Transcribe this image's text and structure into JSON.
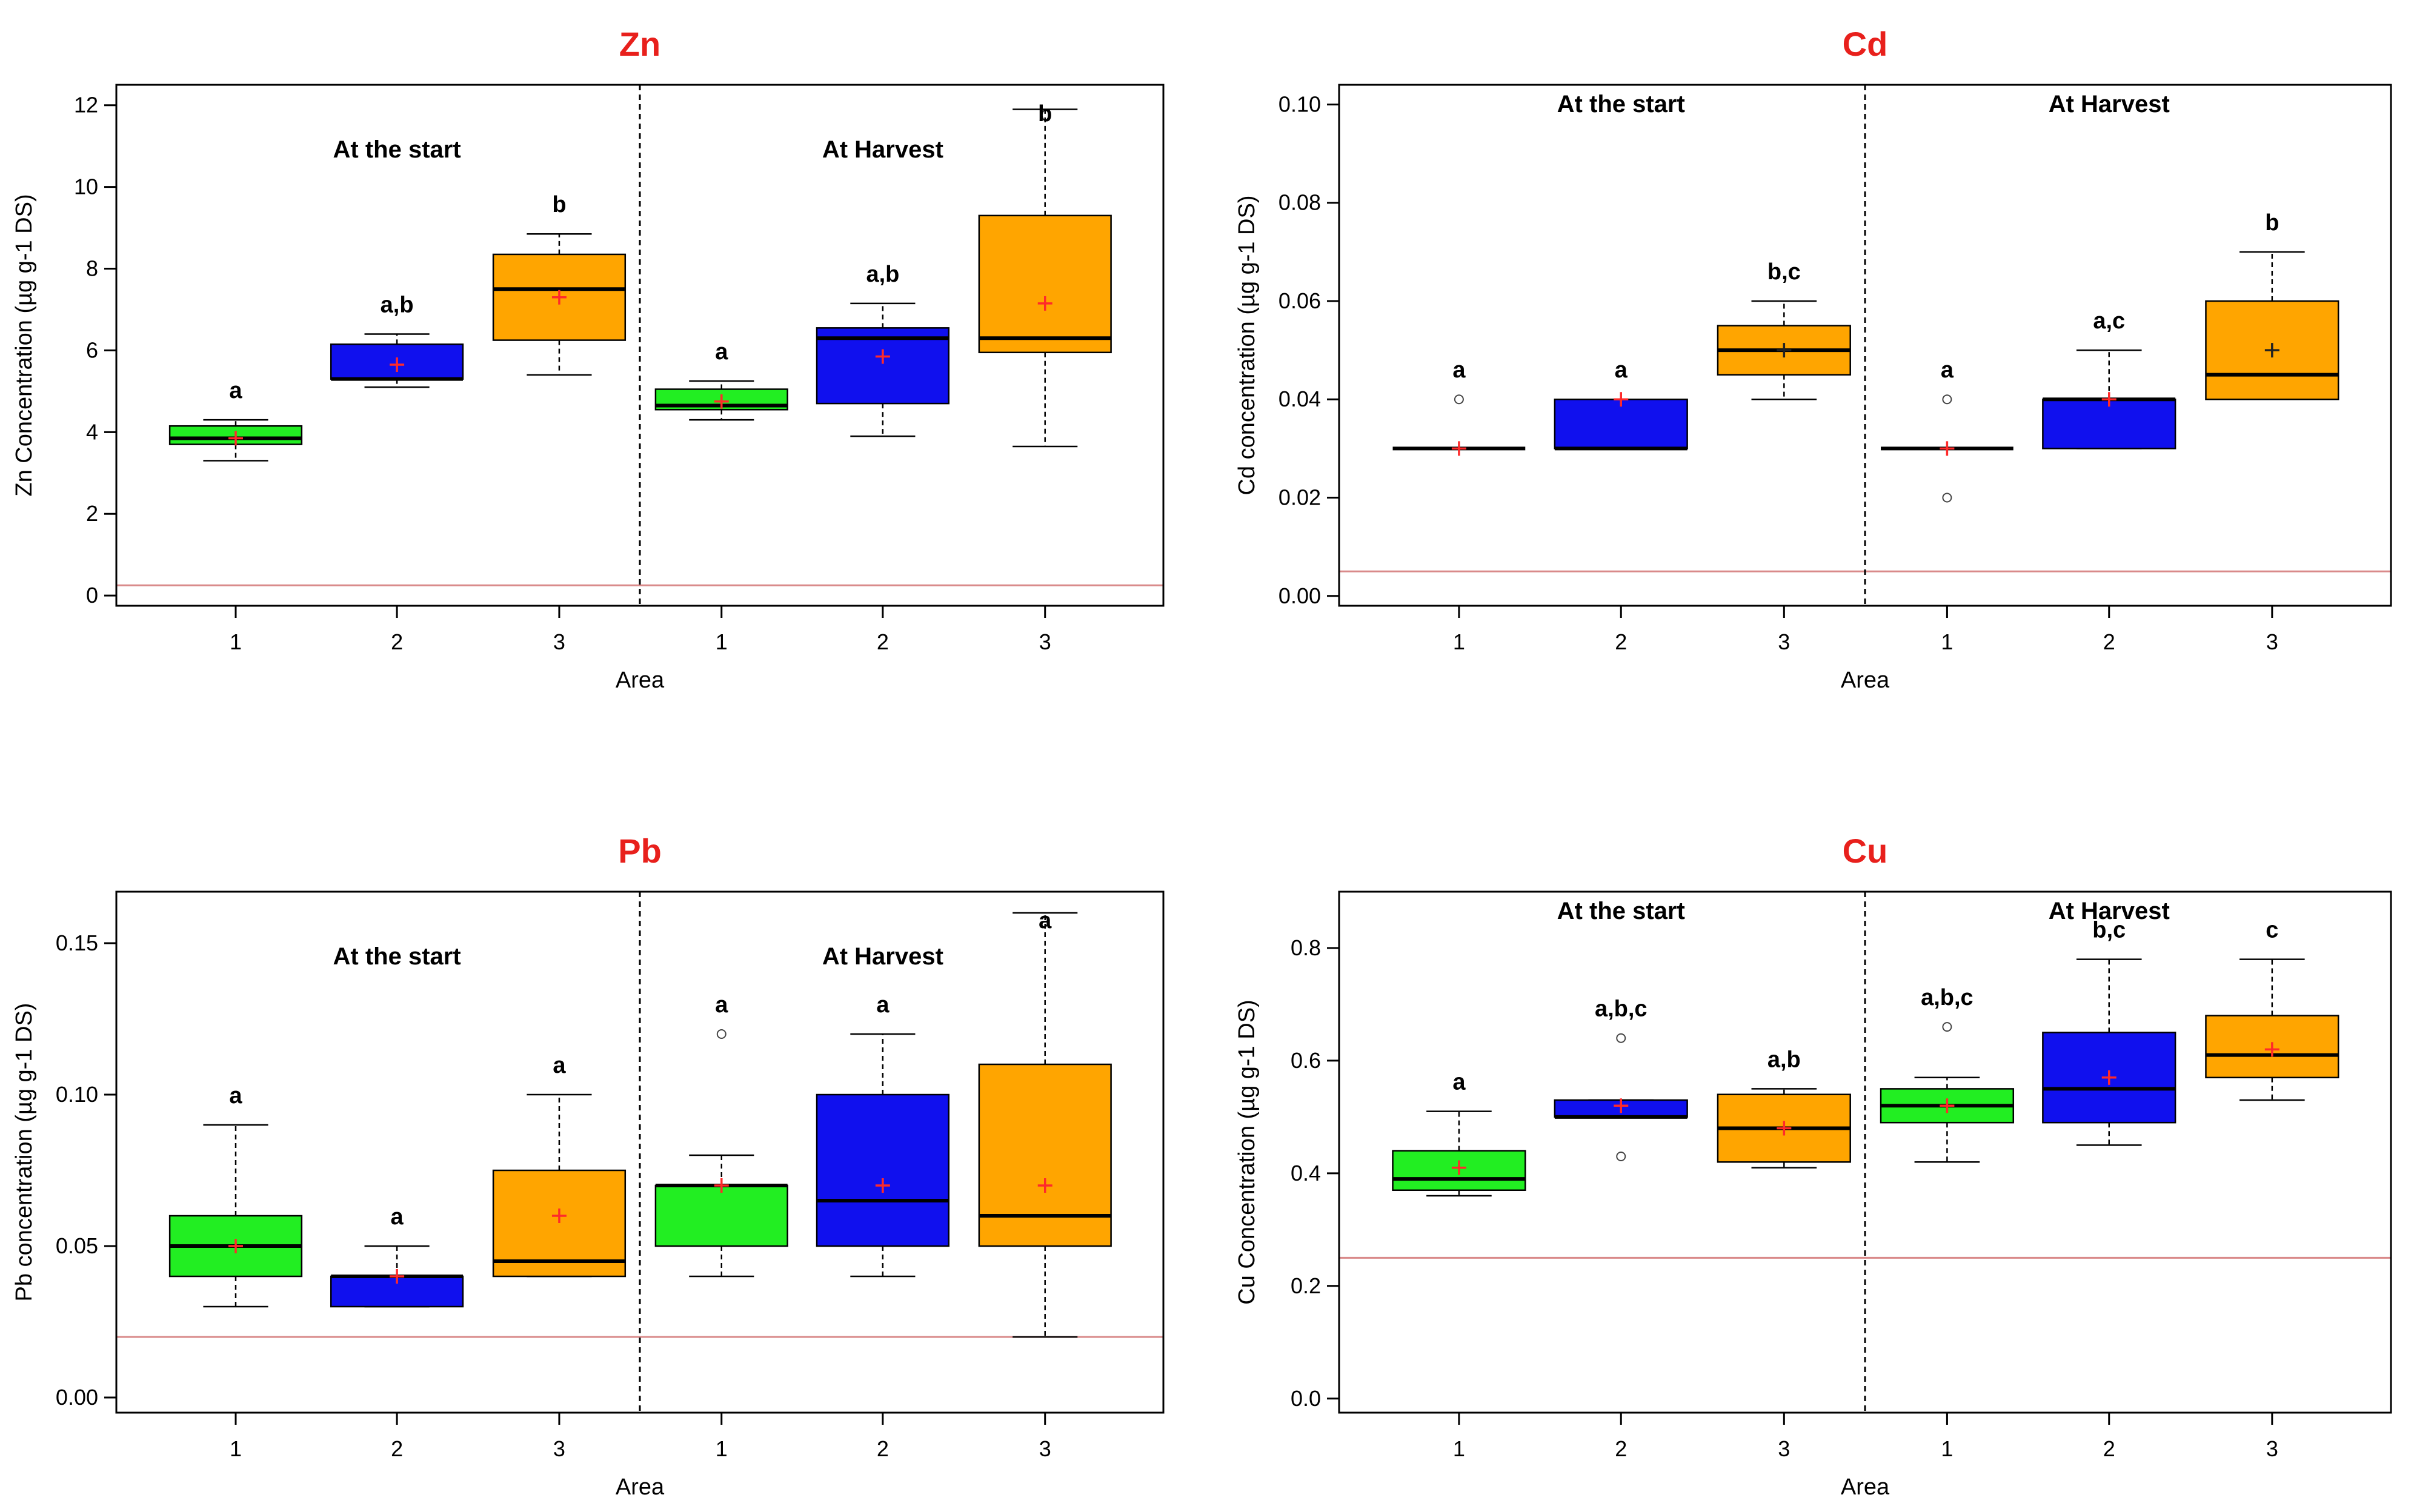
{
  "colors": {
    "title": "#e8201c",
    "threshold": "#d98a8a",
    "green": "#22ee22",
    "blue": "#1010ee",
    "orange": "#ffa500",
    "mean_marker": "#ff2a2a",
    "mean_marker_dark": "#222222"
  },
  "chart_data": [
    {
      "type": "boxplot",
      "title": "Zn",
      "xlabel": "Area",
      "ylabel": "Zn Concentration (µg g-1 DS)",
      "ylim": [
        -0.25,
        12.5
      ],
      "yticks": [
        "0",
        "2",
        "4",
        "6",
        "8",
        "10",
        "12"
      ],
      "ytick_values": [
        0,
        2,
        4,
        6,
        8,
        10,
        12
      ],
      "threshold": 0.25,
      "periods": [
        "At the start",
        "At Harvest"
      ],
      "groups": [
        {
          "period": "At the start",
          "area": "1",
          "color": "green",
          "min": 3.3,
          "q1": 3.7,
          "median": 3.85,
          "q3": 4.15,
          "max": 4.3,
          "mean": 3.85,
          "outliers": [],
          "letter": "a"
        },
        {
          "period": "At the start",
          "area": "2",
          "color": "blue",
          "min": 5.1,
          "q1": 5.3,
          "median": 5.3,
          "q3": 6.15,
          "max": 6.4,
          "mean": 5.65,
          "outliers": [],
          "letter": "a,b"
        },
        {
          "period": "At the start",
          "area": "3",
          "color": "orange",
          "min": 5.4,
          "q1": 6.25,
          "median": 7.5,
          "q3": 8.35,
          "max": 8.85,
          "mean": 7.3,
          "outliers": [],
          "letter": "b"
        },
        {
          "period": "At Harvest",
          "area": "1",
          "color": "green",
          "min": 4.3,
          "q1": 4.55,
          "median": 4.65,
          "q3": 5.05,
          "max": 5.25,
          "mean": 4.75,
          "outliers": [],
          "letter": "a"
        },
        {
          "period": "At Harvest",
          "area": "2",
          "color": "blue",
          "min": 3.9,
          "q1": 4.7,
          "median": 6.3,
          "q3": 6.55,
          "max": 7.15,
          "mean": 5.85,
          "outliers": [],
          "letter": "a,b"
        },
        {
          "period": "At Harvest",
          "area": "3",
          "color": "orange",
          "min": 3.65,
          "q1": 5.95,
          "median": 6.3,
          "q3": 9.3,
          "max": 11.9,
          "mean": 7.15,
          "outliers": [],
          "letter": "b"
        }
      ]
    },
    {
      "type": "boxplot",
      "title": "Cd",
      "xlabel": "Area",
      "ylabel": "Cd concentration (µg g-1 DS)",
      "ylim": [
        -0.002,
        0.104
      ],
      "yticks": [
        "0.00",
        "0.02",
        "0.04",
        "0.06",
        "0.08",
        "0.10"
      ],
      "ytick_values": [
        0,
        0.02,
        0.04,
        0.06,
        0.08,
        0.1
      ],
      "threshold": 0.005,
      "periods": [
        "At the start",
        "At Harvest"
      ],
      "groups": [
        {
          "period": "At the start",
          "area": "1",
          "color": "green",
          "min": 0.03,
          "q1": 0.03,
          "median": 0.03,
          "q3": 0.03,
          "max": 0.03,
          "mean": 0.03,
          "outliers": [
            0.04
          ],
          "letter": "a"
        },
        {
          "period": "At the start",
          "area": "2",
          "color": "blue",
          "min": 0.03,
          "q1": 0.03,
          "median": 0.03,
          "q3": 0.04,
          "max": 0.04,
          "mean": 0.04,
          "outliers": [],
          "letter": "a"
        },
        {
          "period": "At the start",
          "area": "3",
          "color": "orange",
          "min": 0.04,
          "q1": 0.045,
          "median": 0.05,
          "q3": 0.055,
          "max": 0.06,
          "mean": 0.05,
          "outliers": [],
          "letter": "b,c"
        },
        {
          "period": "At Harvest",
          "area": "1",
          "color": "green",
          "min": 0.03,
          "q1": 0.03,
          "median": 0.03,
          "q3": 0.03,
          "max": 0.03,
          "mean": 0.03,
          "outliers": [
            0.02,
            0.04
          ],
          "letter": "a"
        },
        {
          "period": "At Harvest",
          "area": "2",
          "color": "blue",
          "min": 0.03,
          "q1": 0.03,
          "median": 0.04,
          "q3": 0.04,
          "max": 0.05,
          "mean": 0.04,
          "outliers": [],
          "letter": "a,c"
        },
        {
          "period": "At Harvest",
          "area": "3",
          "color": "orange",
          "min": 0.04,
          "q1": 0.04,
          "median": 0.045,
          "q3": 0.06,
          "max": 0.07,
          "mean": 0.05,
          "outliers": [],
          "letter": "b"
        }
      ]
    },
    {
      "type": "boxplot",
      "title": "Pb",
      "xlabel": "Area",
      "ylabel": "Pb concentration (µg g-1 DS)",
      "ylim": [
        -0.005,
        0.167
      ],
      "yticks": [
        "0.00",
        "0.05",
        "0.10",
        "0.15"
      ],
      "ytick_values": [
        0,
        0.05,
        0.1,
        0.15
      ],
      "threshold": 0.02,
      "periods": [
        "At the start",
        "At Harvest"
      ],
      "groups": [
        {
          "period": "At the start",
          "area": "1",
          "color": "green",
          "min": 0.03,
          "q1": 0.04,
          "median": 0.05,
          "q3": 0.06,
          "max": 0.09,
          "mean": 0.05,
          "outliers": [],
          "letter": "a"
        },
        {
          "period": "At the start",
          "area": "2",
          "color": "blue",
          "min": 0.03,
          "q1": 0.03,
          "median": 0.04,
          "q3": 0.04,
          "max": 0.05,
          "mean": 0.04,
          "outliers": [],
          "letter": "a"
        },
        {
          "period": "At the start",
          "area": "3",
          "color": "orange",
          "min": 0.04,
          "q1": 0.04,
          "median": 0.045,
          "q3": 0.075,
          "max": 0.1,
          "mean": 0.06,
          "outliers": [],
          "letter": "a"
        },
        {
          "period": "At Harvest",
          "area": "1",
          "color": "green",
          "min": 0.04,
          "q1": 0.05,
          "median": 0.07,
          "q3": 0.07,
          "max": 0.08,
          "mean": 0.07,
          "outliers": [
            0.12
          ],
          "letter": "a"
        },
        {
          "period": "At Harvest",
          "area": "2",
          "color": "blue",
          "min": 0.04,
          "q1": 0.05,
          "median": 0.065,
          "q3": 0.1,
          "max": 0.12,
          "mean": 0.07,
          "outliers": [],
          "letter": "a"
        },
        {
          "period": "At Harvest",
          "area": "3",
          "color": "orange",
          "min": 0.02,
          "q1": 0.05,
          "median": 0.06,
          "q3": 0.11,
          "max": 0.16,
          "mean": 0.07,
          "outliers": [],
          "letter": "a"
        }
      ]
    },
    {
      "type": "boxplot",
      "title": "Cu",
      "xlabel": "Area",
      "ylabel": "Cu Concentration (µg g-1 DS)",
      "ylim": [
        -0.025,
        0.9
      ],
      "yticks": [
        "0.0",
        "0.2",
        "0.4",
        "0.6",
        "0.8"
      ],
      "ytick_values": [
        0,
        0.2,
        0.4,
        0.6,
        0.8
      ],
      "threshold": 0.25,
      "periods": [
        "At the start",
        "At Harvest"
      ],
      "groups": [
        {
          "period": "At the start",
          "area": "1",
          "color": "green",
          "min": 0.36,
          "q1": 0.37,
          "median": 0.39,
          "q3": 0.44,
          "max": 0.51,
          "mean": 0.41,
          "outliers": [],
          "letter": "a"
        },
        {
          "period": "At the start",
          "area": "2",
          "color": "blue",
          "min": 0.5,
          "q1": 0.5,
          "median": 0.5,
          "q3": 0.53,
          "max": 0.53,
          "mean": 0.52,
          "outliers": [
            0.43,
            0.64
          ],
          "letter": "a,b,c"
        },
        {
          "period": "At the start",
          "area": "3",
          "color": "orange",
          "min": 0.41,
          "q1": 0.42,
          "median": 0.48,
          "q3": 0.54,
          "max": 0.55,
          "mean": 0.48,
          "outliers": [],
          "letter": "a,b"
        },
        {
          "period": "At Harvest",
          "area": "1",
          "color": "green",
          "min": 0.42,
          "q1": 0.49,
          "median": 0.52,
          "q3": 0.55,
          "max": 0.57,
          "mean": 0.52,
          "outliers": [
            0.66
          ],
          "letter": "a,b,c"
        },
        {
          "period": "At Harvest",
          "area": "2",
          "color": "blue",
          "min": 0.45,
          "q1": 0.49,
          "median": 0.55,
          "q3": 0.65,
          "max": 0.78,
          "mean": 0.57,
          "outliers": [],
          "letter": "b,c"
        },
        {
          "period": "At Harvest",
          "area": "3",
          "color": "orange",
          "min": 0.53,
          "q1": 0.57,
          "median": 0.61,
          "q3": 0.68,
          "max": 0.78,
          "mean": 0.62,
          "outliers": [],
          "letter": "c"
        }
      ]
    }
  ]
}
